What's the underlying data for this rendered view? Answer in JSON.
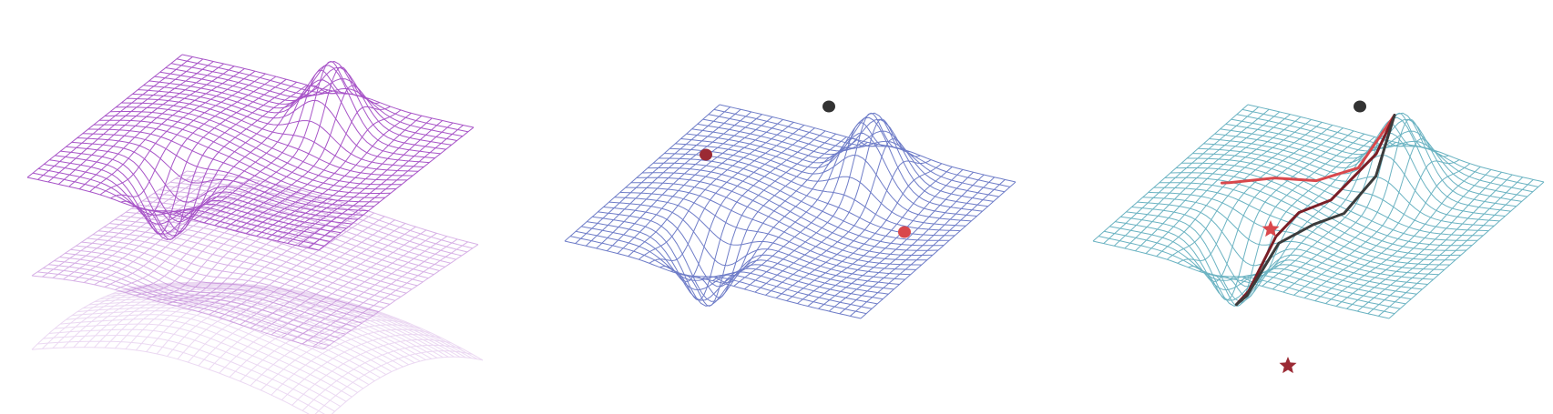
{
  "figure": {
    "background": "#ffffff",
    "panels": [
      {
        "id": "stacked-surfaces",
        "mesh_color": "#a855c8",
        "layers": [
          {
            "role": "top-surface",
            "opacity": 1.0,
            "bumps": "peak-and-valley"
          },
          {
            "role": "middle-surface",
            "opacity": 0.45,
            "bumps": "shallow"
          },
          {
            "role": "bottom-surface",
            "opacity": 0.22,
            "bumps": "bowl"
          }
        ],
        "markers": [],
        "paths": []
      },
      {
        "id": "surface-with-points",
        "mesh_color": "#6f7dc8",
        "layers": [
          {
            "role": "surface",
            "opacity": 1.0,
            "bumps": "peak-and-valley"
          }
        ],
        "markers": [
          {
            "name": "peak-point",
            "shape": "dot",
            "color": "#333333"
          },
          {
            "name": "left-point",
            "shape": "dot",
            "color": "#9b2a34"
          },
          {
            "name": "right-point",
            "shape": "dot",
            "color": "#d9484c"
          }
        ],
        "paths": []
      },
      {
        "id": "surface-with-trajectories",
        "mesh_color": "#6bb3c2",
        "layers": [
          {
            "role": "surface",
            "opacity": 1.0,
            "bumps": "peak-and-valley"
          }
        ],
        "markers": [
          {
            "name": "start-point",
            "shape": "dot",
            "color": "#333333"
          },
          {
            "name": "red-end-star",
            "shape": "star",
            "color": "#d9484c"
          },
          {
            "name": "valley-end-star",
            "shape": "star",
            "color": "#9b2a34"
          }
        ],
        "paths": [
          {
            "name": "red-trajectory",
            "color": "#d9484c"
          },
          {
            "name": "dark-red-trajectory",
            "color": "#7a1e26"
          },
          {
            "name": "gray-trajectory",
            "color": "#3c3c3c"
          }
        ]
      }
    ]
  }
}
